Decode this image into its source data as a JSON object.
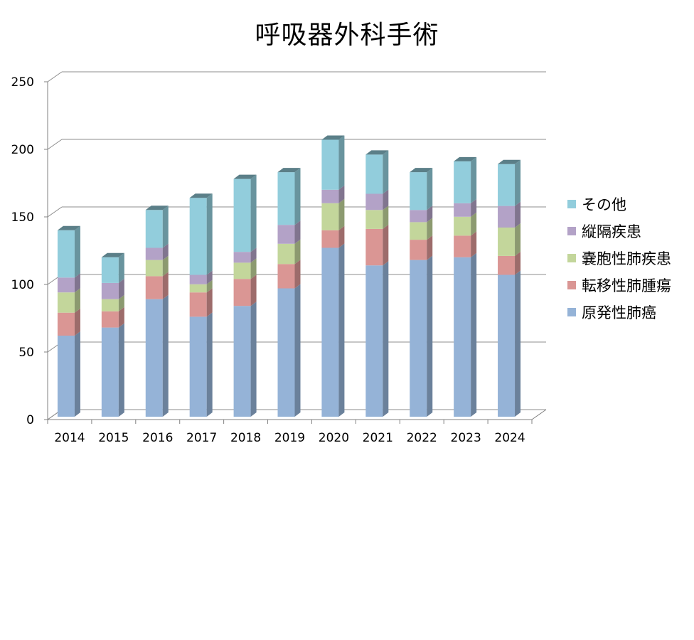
{
  "title": "呼吸器外科手術",
  "chart_data": {
    "type": "bar",
    "stacked": true,
    "style": "3d-column",
    "categories": [
      "2014",
      "2015",
      "2016",
      "2017",
      "2018",
      "2019",
      "2020",
      "2021",
      "2022",
      "2023",
      "2024"
    ],
    "series": [
      {
        "name": "原発性肺癌",
        "color": "#95b3d7",
        "values": [
          60,
          66,
          87,
          74,
          82,
          95,
          125,
          112,
          116,
          118,
          105
        ]
      },
      {
        "name": "転移性肺腫瘍",
        "color": "#da9694",
        "values": [
          17,
          12,
          17,
          18,
          20,
          18,
          13,
          27,
          15,
          16,
          14
        ]
      },
      {
        "name": "嚢胞性肺疾患",
        "color": "#c3d69b",
        "values": [
          15,
          9,
          12,
          6,
          12,
          15,
          20,
          14,
          13,
          14,
          21
        ]
      },
      {
        "name": "縦隔疾患",
        "color": "#b3a2c7",
        "values": [
          11,
          12,
          9,
          7,
          8,
          14,
          10,
          12,
          9,
          10,
          16
        ]
      },
      {
        "name": "その他",
        "color": "#92cddc",
        "values": [
          35,
          19,
          28,
          57,
          54,
          39,
          37,
          29,
          28,
          31,
          31
        ]
      }
    ],
    "ylim": [
      0,
      250
    ],
    "yticks": [
      "0",
      "50",
      "100",
      "150",
      "200",
      "250"
    ],
    "grid": true,
    "legend_position": "right"
  }
}
